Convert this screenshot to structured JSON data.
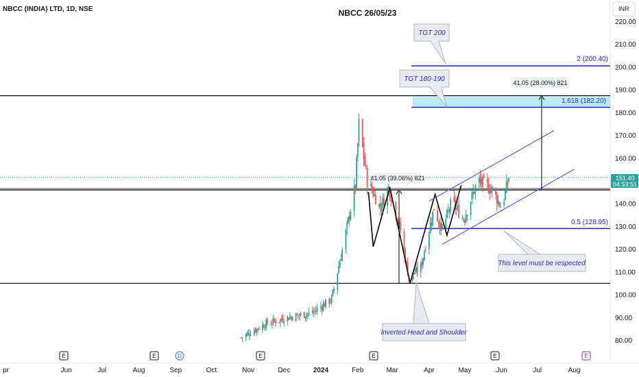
{
  "header": {
    "symbol_info": "NBCC (INDIA) LTD, 1D, NSE",
    "chart_title": "NBCC 26/05/23",
    "currency": "INR"
  },
  "price_axis": {
    "ticks": [
      "220.00",
      "210.00",
      "200.00",
      "190.00",
      "180.00",
      "170.00",
      "160.00",
      "150.00",
      "140.00",
      "130.00",
      "120.00",
      "110.00",
      "100.00",
      "90.00",
      "80.00"
    ]
  },
  "last_price": {
    "value": "151.40",
    "countdown": "04:53:51",
    "color": "#26a69a"
  },
  "time_axis": {
    "ticks": [
      "pr",
      "Jun",
      "Jul",
      "Aug",
      "Sep",
      "Oct",
      "Nov",
      "Dec",
      "2024",
      "Feb",
      "Mar",
      "Apr",
      "May",
      "Jun",
      "Jul",
      "Aug"
    ]
  },
  "events": [
    {
      "label": "E",
      "kind": "earnings",
      "month": "Jun"
    },
    {
      "label": "E",
      "kind": "earnings",
      "month": "Aug"
    },
    {
      "label": "D",
      "kind": "dividend",
      "month": "Sep"
    },
    {
      "label": "E",
      "kind": "earnings",
      "month": "Nov"
    },
    {
      "label": "E",
      "kind": "earnings",
      "month": "Feb"
    },
    {
      "label": "E",
      "kind": "earnings",
      "month": "May"
    },
    {
      "label": "E",
      "kind": "earnings-upcoming",
      "month": "Aug"
    }
  ],
  "annotations": {
    "tgt200": "TGT 200",
    "tgt180": "TGT 180-190",
    "level_200": "2 (200.40)",
    "level_182": "1.618 (182.20)",
    "level_129": "0.5 (128.95)",
    "measure_upper": "41.05 (28.00%) 821",
    "measure_lower": "41.05 (39.06%) 821",
    "level_note": "This level must be respected",
    "pattern_note": "Inverted Head and Shoulder"
  },
  "colors": {
    "up": "#26a69a",
    "down": "#ef5350",
    "level_line": "#1e1ec8",
    "channel": "#5b5bf0",
    "target_zone": "#a8e6f0",
    "pattern": "#000000"
  },
  "chart_data": {
    "type": "candlestick",
    "symbol": "NBCC (INDIA) LTD",
    "interval": "1D",
    "exchange": "NSE",
    "title": "NBCC 26/05/23",
    "ylim": [
      76,
      226
    ],
    "last_price": 151.4,
    "horizontal_levels": [
      {
        "label": "2 (200.40)",
        "value": 200.4
      },
      {
        "label": "1.618 (182.20)",
        "value": 182.2
      },
      {
        "label": "0.5 (128.95)",
        "value": 128.95
      }
    ],
    "support_resistance_lines": [
      187.3,
      145.9,
      104.9
    ],
    "target_zone": [
      182.2,
      187.3
    ],
    "measured_moves": [
      "41.05 (28.00%) 821",
      "41.05 (39.06%) 821"
    ],
    "pattern_points": [
      {
        "date": "2024-02-10",
        "price": 145
      },
      {
        "date": "2024-02-14",
        "price": 121
      },
      {
        "date": "2024-02-28",
        "price": 147
      },
      {
        "date": "2024-03-16",
        "price": 105
      },
      {
        "date": "2024-04-06",
        "price": 144
      },
      {
        "date": "2024-04-16",
        "price": 126
      },
      {
        "date": "2024-04-28",
        "price": 148
      }
    ],
    "channel": {
      "upper": [
        {
          "date": "2024-04-01",
          "price": 141
        },
        {
          "date": "2024-07-15",
          "price": 172
        }
      ],
      "lower": [
        {
          "date": "2024-04-12",
          "price": 122
        },
        {
          "date": "2024-08-01",
          "price": 155
        }
      ]
    },
    "candles_approx": [
      {
        "date": "2023-10-26",
        "close": 81
      },
      {
        "date": "2023-11-15",
        "close": 87
      },
      {
        "date": "2023-12-05",
        "close": 90
      },
      {
        "date": "2023-12-25",
        "close": 92
      },
      {
        "date": "2024-01-10",
        "close": 98
      },
      {
        "date": "2024-01-20",
        "close": 122
      },
      {
        "date": "2024-01-30",
        "close": 148
      },
      {
        "date": "2024-02-02",
        "close": 175
      },
      {
        "date": "2024-02-09",
        "close": 150
      },
      {
        "date": "2024-02-20",
        "close": 138
      },
      {
        "date": "2024-02-27",
        "close": 147
      },
      {
        "date": "2024-03-08",
        "close": 128
      },
      {
        "date": "2024-03-15",
        "close": 107
      },
      {
        "date": "2024-03-25",
        "close": 112
      },
      {
        "date": "2024-04-05",
        "close": 138
      },
      {
        "date": "2024-04-12",
        "close": 128
      },
      {
        "date": "2024-04-20",
        "close": 141
      },
      {
        "date": "2024-04-30",
        "close": 133
      },
      {
        "date": "2024-05-12",
        "close": 150
      },
      {
        "date": "2024-05-24",
        "close": 146
      },
      {
        "date": "2024-06-01",
        "close": 138
      },
      {
        "date": "2024-06-07",
        "close": 151.4
      }
    ]
  }
}
